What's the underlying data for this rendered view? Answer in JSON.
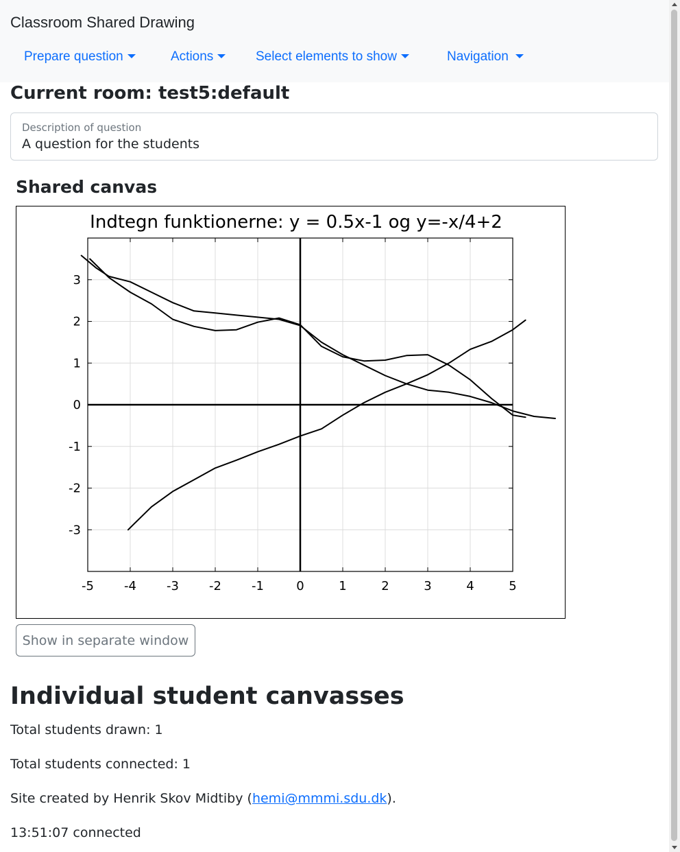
{
  "navbar": {
    "brand": "Classroom Shared Drawing",
    "items": [
      {
        "label": "Prepare question"
      },
      {
        "label": "Actions"
      },
      {
        "label": "Select elements to show"
      },
      {
        "label": "Navigation"
      }
    ]
  },
  "room": {
    "title": "Current room: test5:default"
  },
  "question": {
    "label": "Description of question",
    "value": "A question for the students"
  },
  "shared_canvas": {
    "heading": "Shared canvas",
    "button_label": "Show in separate window"
  },
  "individual": {
    "heading": "Individual student canvasses",
    "total_drawn": "Total students drawn: 1",
    "total_connected": "Total students connected: 1",
    "credit_prefix": "Site created by Henrik Skov Midtiby (",
    "credit_email": "hemi@mmmi.sdu.dk",
    "credit_suffix": ").",
    "status": "13:51:07 connected"
  },
  "chart_data": {
    "type": "line",
    "title": "Indtegn funktionerne: y = 0.5x-1 og y=-x/4+2",
    "xlabel": "",
    "ylabel": "",
    "xlim": [
      -5,
      5
    ],
    "ylim": [
      -4,
      4
    ],
    "x_ticks": [
      -5,
      -4,
      -3,
      -2,
      -1,
      0,
      1,
      2,
      3,
      4,
      5
    ],
    "y_ticks": [
      -3,
      -2,
      -1,
      0,
      1,
      2,
      3
    ],
    "grid": true,
    "axes_lines": {
      "x": 0,
      "y": 0
    },
    "series": [
      {
        "points": [
          [
            -4.05,
            -3.0
          ],
          [
            -3.9,
            -2.85
          ],
          [
            -3.5,
            -2.45
          ],
          [
            -3.0,
            -2.08
          ],
          [
            -2.5,
            -1.8
          ],
          [
            -2.0,
            -1.52
          ],
          [
            -1.5,
            -1.33
          ],
          [
            -1.0,
            -1.13
          ],
          [
            -0.5,
            -0.95
          ],
          [
            0,
            -0.75
          ],
          [
            0.5,
            -0.58
          ],
          [
            1.0,
            -0.25
          ],
          [
            1.5,
            0.05
          ],
          [
            2.0,
            0.3
          ],
          [
            2.5,
            0.5
          ],
          [
            3.0,
            0.72
          ],
          [
            3.5,
            1.0
          ],
          [
            4.0,
            1.33
          ],
          [
            4.5,
            1.52
          ],
          [
            5.0,
            1.8
          ],
          [
            5.3,
            2.03
          ]
        ]
      },
      {
        "points": [
          [
            -5.15,
            3.58
          ],
          [
            -4.8,
            3.28
          ],
          [
            -4.5,
            3.08
          ],
          [
            -4.0,
            2.95
          ],
          [
            -3.5,
            2.7
          ],
          [
            -3.0,
            2.45
          ],
          [
            -2.5,
            2.25
          ],
          [
            -2.0,
            2.2
          ],
          [
            -1.5,
            2.15
          ],
          [
            -1.0,
            2.1
          ],
          [
            -0.5,
            2.05
          ],
          [
            0,
            1.9
          ],
          [
            0.5,
            1.5
          ],
          [
            1.0,
            1.2
          ],
          [
            1.5,
            0.95
          ],
          [
            2.0,
            0.7
          ],
          [
            2.5,
            0.5
          ],
          [
            3.0,
            0.35
          ],
          [
            3.5,
            0.3
          ],
          [
            4.0,
            0.2
          ],
          [
            4.5,
            0.05
          ],
          [
            5.0,
            -0.15
          ],
          [
            5.5,
            -0.28
          ],
          [
            6.0,
            -0.33
          ]
        ]
      },
      {
        "points": [
          [
            -4.95,
            3.5
          ],
          [
            -4.5,
            3.05
          ],
          [
            -4.0,
            2.7
          ],
          [
            -3.5,
            2.42
          ],
          [
            -3.0,
            2.05
          ],
          [
            -2.5,
            1.88
          ],
          [
            -2.0,
            1.78
          ],
          [
            -1.5,
            1.8
          ],
          [
            -1.0,
            1.98
          ],
          [
            -0.5,
            2.08
          ],
          [
            0,
            1.92
          ],
          [
            0.5,
            1.4
          ],
          [
            1.0,
            1.15
          ],
          [
            1.5,
            1.05
          ],
          [
            2.0,
            1.07
          ],
          [
            2.5,
            1.18
          ],
          [
            3.0,
            1.2
          ],
          [
            3.5,
            0.95
          ],
          [
            4.0,
            0.6
          ],
          [
            4.5,
            0.15
          ],
          [
            5.0,
            -0.25
          ],
          [
            5.3,
            -0.3
          ]
        ]
      }
    ]
  }
}
